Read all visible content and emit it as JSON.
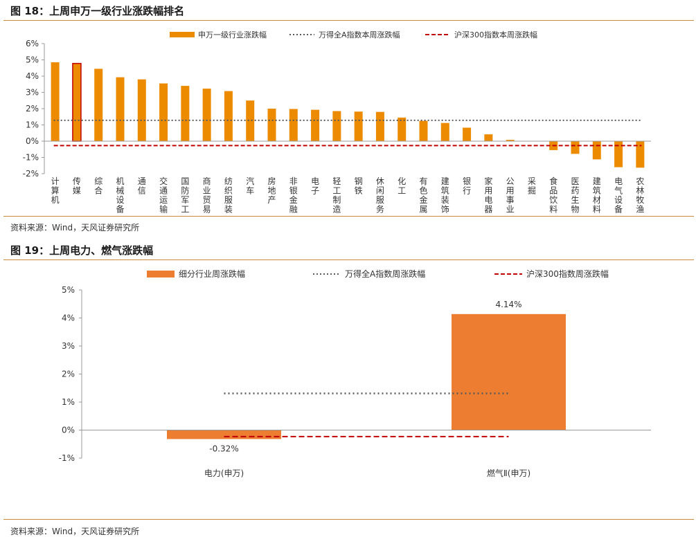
{
  "figure18": {
    "title": "图 18：上周申万一级行业涨跌幅排名",
    "source": "资料来源：Wind，天风证券研究所"
  },
  "figure19": {
    "title": "图 19：上周电力、燃气涨跌幅",
    "source": "资料来源：Wind，天风证券研究所"
  },
  "colors": {
    "bar": "#ED8B00",
    "bar_highlight_border": "#C00000",
    "bar2": "#ED7D31",
    "dotted": "#595959",
    "dashed": "#C00000",
    "rule": "#C98A3A"
  },
  "chart_data": [
    {
      "type": "bar",
      "categories": [
        "计算机",
        "传媒",
        "综合",
        "机械设备",
        "通信",
        "交通运输",
        "国防军工",
        "商业贸易",
        "纺织服装",
        "汽车",
        "房地产",
        "非银金融",
        "电子",
        "轻工制造",
        "钢铁",
        "休闲服务",
        "化工",
        "有色金属",
        "建筑装饰",
        "银行",
        "家用电器",
        "公用事业",
        "采掘",
        "食品饮料",
        "医药生物",
        "建筑材料",
        "电气设备",
        "农林牧渔"
      ],
      "series": [
        {
          "name": "申万一级行业涨跌幅",
          "values": [
            4.85,
            4.78,
            4.45,
            3.93,
            3.8,
            3.55,
            3.4,
            3.23,
            3.08,
            2.5,
            2.0,
            1.98,
            1.93,
            1.85,
            1.82,
            1.8,
            1.45,
            1.25,
            1.12,
            0.83,
            0.42,
            0.08,
            0.0,
            -0.55,
            -0.78,
            -1.12,
            -1.6,
            -1.63
          ]
        }
      ],
      "reference_lines": [
        {
          "name": "万得全A指数本周涨跌幅",
          "value": 1.28,
          "style": "dotted"
        },
        {
          "name": "沪深300指数本周涨跌幅",
          "value": -0.27,
          "style": "dashed"
        }
      ],
      "highlight_category": "传媒",
      "ylim": [
        -2,
        6
      ],
      "yticks": [
        "-2%",
        "-1%",
        "0%",
        "1%",
        "2%",
        "3%",
        "4%",
        "5%",
        "6%"
      ],
      "legend_position": "top",
      "grid": false
    },
    {
      "type": "bar",
      "categories": [
        "电力(申万)",
        "燃气Ⅱ(申万)"
      ],
      "series": [
        {
          "name": "细分行业周涨跌幅",
          "values": [
            -0.32,
            4.14
          ]
        }
      ],
      "data_labels": [
        "-0.32%",
        "4.14%"
      ],
      "reference_lines": [
        {
          "name": "万得全A指数周涨跌幅",
          "value": 1.31,
          "style": "dotted"
        },
        {
          "name": "沪深300指数周涨跌幅",
          "value": -0.23,
          "style": "dashed"
        }
      ],
      "ylim": [
        -1,
        5
      ],
      "yticks": [
        "-1%",
        "0%",
        "1%",
        "2%",
        "3%",
        "4%",
        "5%"
      ],
      "legend_position": "top",
      "grid": false
    }
  ]
}
